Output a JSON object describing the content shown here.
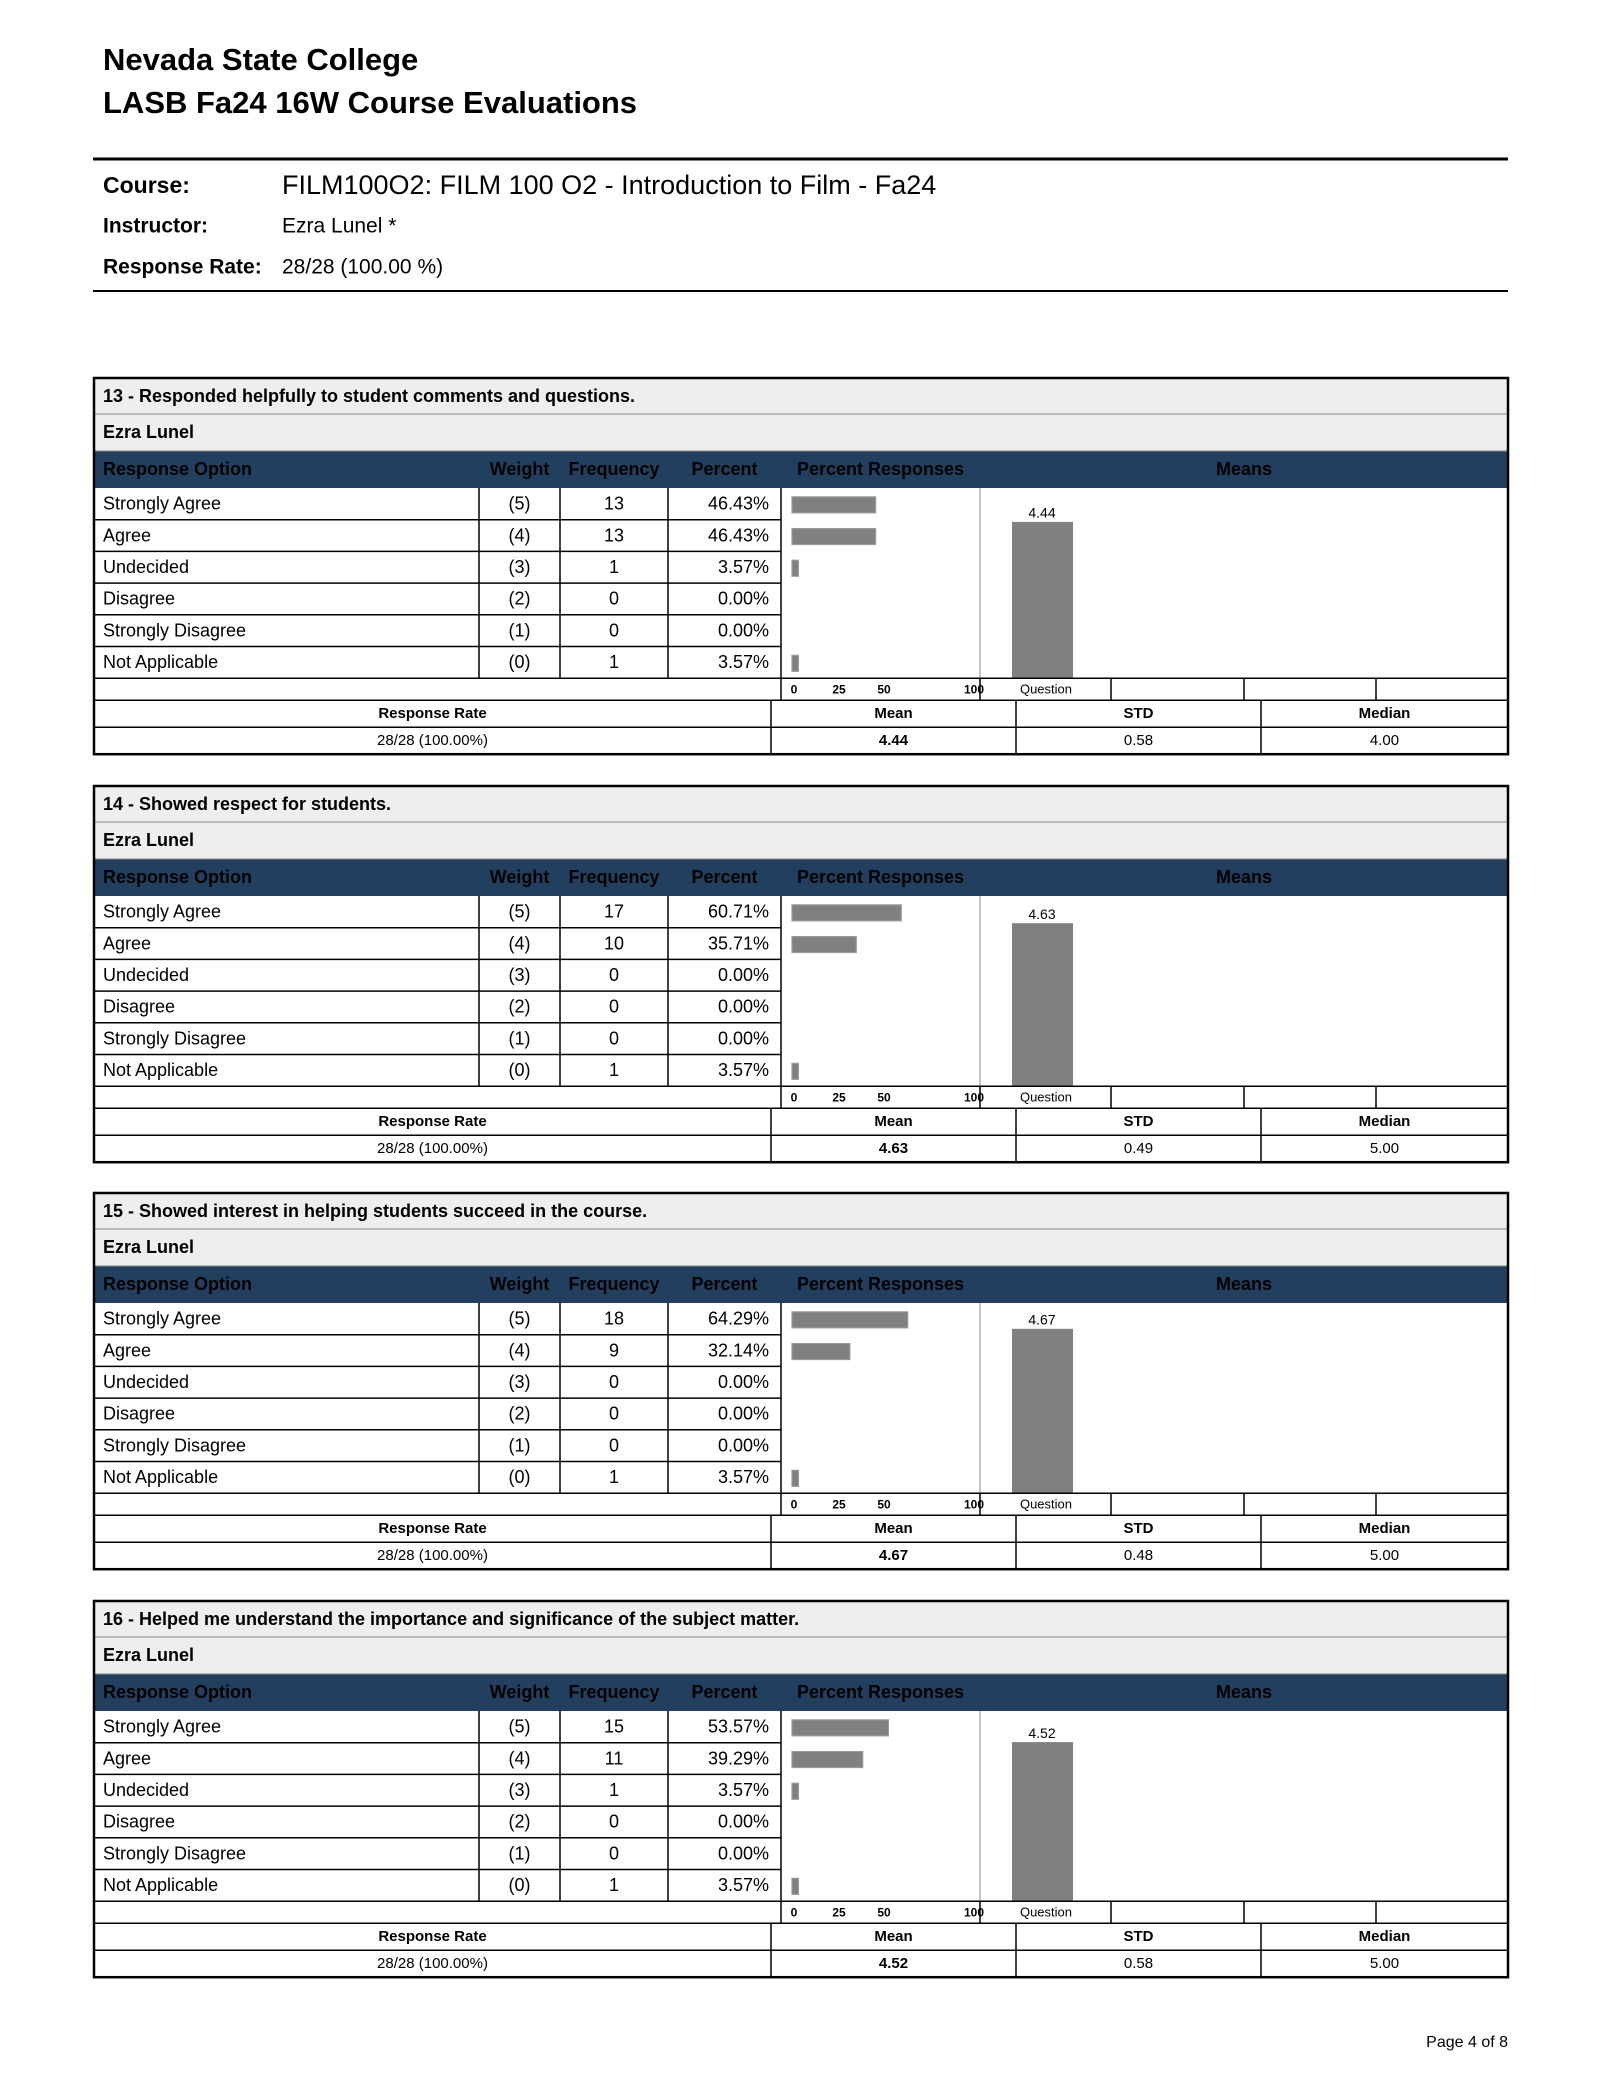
{
  "header": {
    "institution": "Nevada State College",
    "title": "LASB Fa24 16W Course Evaluations"
  },
  "course_info": {
    "course_label": "Course:",
    "course": "FILM100O2: FILM 100 O2 - Introduction to Film - Fa24",
    "instructor_label": "Instructor:",
    "instructor": "Ezra Lunel *",
    "response_rate_label": "Response Rate:",
    "response_rate": "28/28 (100.00 %)"
  },
  "table_labels": {
    "response_option": "Response Option",
    "weight": "Weight",
    "frequency": "Frequency",
    "percent": "Percent",
    "percent_responses": "Percent Responses",
    "means": "Means",
    "question": "Question",
    "response_rate": "Response Rate",
    "mean": "Mean",
    "std": "STD",
    "median": "Median"
  },
  "percent_axis": {
    "ticks": [
      0,
      25,
      50,
      100
    ]
  },
  "questions": [
    {
      "title": "13 - Responded helpfully to student comments and questions.",
      "instructor": "Ezra Lunel",
      "options": [
        "Strongly Agree",
        "Agree",
        "Undecided",
        "Disagree",
        "Strongly Disagree",
        "Not Applicable"
      ],
      "weights": [
        "(5)",
        "(4)",
        "(3)",
        "(2)",
        "(1)",
        "(0)"
      ],
      "frequencies": [
        13,
        13,
        1,
        0,
        0,
        1
      ],
      "percents": [
        46.43,
        46.43,
        3.57,
        0,
        0,
        3.57
      ],
      "percent_labels": [
        "46.43%",
        "46.43%",
        "3.57%",
        "0.00%",
        "0.00%",
        "3.57%"
      ],
      "response_rate": "28/28 (100.00%)",
      "mean": 4.44,
      "std": 0.58,
      "median": "4.00"
    },
    {
      "title": "14 - Showed respect for students.",
      "instructor": "Ezra Lunel",
      "options": [
        "Strongly Agree",
        "Agree",
        "Undecided",
        "Disagree",
        "Strongly Disagree",
        "Not Applicable"
      ],
      "weights": [
        "(5)",
        "(4)",
        "(3)",
        "(2)",
        "(1)",
        "(0)"
      ],
      "frequencies": [
        17,
        10,
        0,
        0,
        0,
        1
      ],
      "percents": [
        60.71,
        35.71,
        0,
        0,
        0,
        3.57
      ],
      "percent_labels": [
        "60.71%",
        "35.71%",
        "0.00%",
        "0.00%",
        "0.00%",
        "3.57%"
      ],
      "response_rate": "28/28 (100.00%)",
      "mean": 4.63,
      "std": 0.49,
      "median": "5.00"
    },
    {
      "title": "15 - Showed interest in helping students succeed in the course.",
      "instructor": "Ezra Lunel",
      "options": [
        "Strongly Agree",
        "Agree",
        "Undecided",
        "Disagree",
        "Strongly Disagree",
        "Not Applicable"
      ],
      "weights": [
        "(5)",
        "(4)",
        "(3)",
        "(2)",
        "(1)",
        "(0)"
      ],
      "frequencies": [
        18,
        9,
        0,
        0,
        0,
        1
      ],
      "percents": [
        64.29,
        32.14,
        0,
        0,
        0,
        3.57
      ],
      "percent_labels": [
        "64.29%",
        "32.14%",
        "0.00%",
        "0.00%",
        "0.00%",
        "3.57%"
      ],
      "response_rate": "28/28 (100.00%)",
      "mean": 4.67,
      "std": 0.48,
      "median": "5.00"
    },
    {
      "title": "16 - Helped me understand the importance and significance of the subject matter.",
      "instructor": "Ezra Lunel",
      "options": [
        "Strongly Agree",
        "Agree",
        "Undecided",
        "Disagree",
        "Strongly Disagree",
        "Not Applicable"
      ],
      "weights": [
        "(5)",
        "(4)",
        "(3)",
        "(2)",
        "(1)",
        "(0)"
      ],
      "frequencies": [
        15,
        11,
        1,
        0,
        0,
        1
      ],
      "percents": [
        53.57,
        39.29,
        3.57,
        0,
        0,
        3.57
      ],
      "percent_labels": [
        "53.57%",
        "39.29%",
        "3.57%",
        "0.00%",
        "0.00%",
        "3.57%"
      ],
      "response_rate": "28/28 (100.00%)",
      "mean": 4.52,
      "std": 0.58,
      "median": "5.00"
    }
  ],
  "footer": {
    "page": "Page 4 of 8"
  }
}
